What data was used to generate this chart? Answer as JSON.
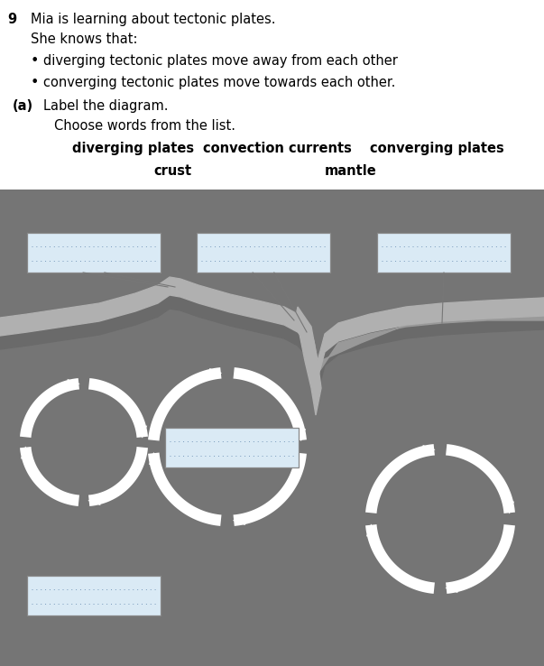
{
  "title_num": "9",
  "title_text": "Mia is learning about tectonic plates.",
  "she_knows": "She knows that:",
  "bullet1": "diverging tectonic plates move away from each other",
  "bullet2": "converging tectonic plates move towards each other.",
  "label_a": "(a)",
  "label_a2": "Label the diagram.",
  "choose": "Choose words from the list.",
  "word1": "diverging plates",
  "word2": "convection currents",
  "word3": "converging plates",
  "word4": "crust",
  "word5": "mantle",
  "bg_color": "#ffffff",
  "box_fill": "#daeaf5",
  "box_edge": "#888888",
  "dot_color": "#7799bb",
  "diagram_bg": "#757575",
  "crust_color": "#aaaaaa",
  "crust_dark": "#888888"
}
